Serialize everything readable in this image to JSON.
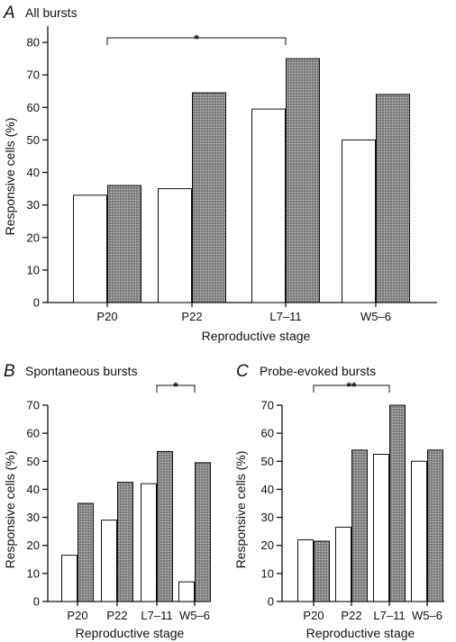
{
  "chart_data": [
    {
      "panel": "A",
      "title": "All bursts",
      "type": "bar",
      "xlabel": "Reproductive stage",
      "ylabel": "Responsive cells (%)",
      "ylim": [
        0,
        85
      ],
      "yticks": [
        0,
        10,
        20,
        30,
        40,
        50,
        60,
        70,
        80
      ],
      "categories": [
        "P20",
        "P22",
        "L7–11",
        "W5–6"
      ],
      "series": [
        {
          "style": "open",
          "values": [
            33,
            35,
            59.5,
            50
          ]
        },
        {
          "style": "stippled",
          "values": [
            36,
            64.5,
            75,
            64
          ]
        }
      ],
      "annotations": [
        {
          "from": 0,
          "to": 2,
          "label": "*"
        }
      ]
    },
    {
      "panel": "B",
      "title": "Spontaneous bursts",
      "type": "bar",
      "xlabel": "Reproductive stage",
      "ylabel": "Responsive cells (%)",
      "ylim": [
        0,
        70
      ],
      "yticks": [
        0,
        10,
        20,
        30,
        40,
        50,
        60,
        70
      ],
      "categories": [
        "P20",
        "P22",
        "L7–11",
        "W5–6"
      ],
      "series": [
        {
          "style": "open",
          "values": [
            16.5,
            29,
            42,
            7
          ]
        },
        {
          "style": "stippled",
          "values": [
            35,
            42.5,
            53.5,
            49.5
          ]
        }
      ],
      "annotations": [
        {
          "from": 2,
          "to": 3,
          "label": "*"
        }
      ]
    },
    {
      "panel": "C",
      "title": "Probe-evoked bursts",
      "type": "bar",
      "xlabel": "Reproductive stage",
      "ylabel": "Responsive cells (%)",
      "ylim": [
        0,
        70
      ],
      "yticks": [
        0,
        10,
        20,
        30,
        40,
        50,
        60,
        70
      ],
      "categories": [
        "P20",
        "P22",
        "L7–11",
        "W5–6"
      ],
      "series": [
        {
          "style": "open",
          "values": [
            22,
            26.5,
            52.5,
            50
          ]
        },
        {
          "style": "stippled",
          "values": [
            21.5,
            54,
            70,
            54
          ]
        }
      ],
      "annotations": [
        {
          "from": 0,
          "to": 2,
          "label": "**"
        }
      ]
    }
  ]
}
